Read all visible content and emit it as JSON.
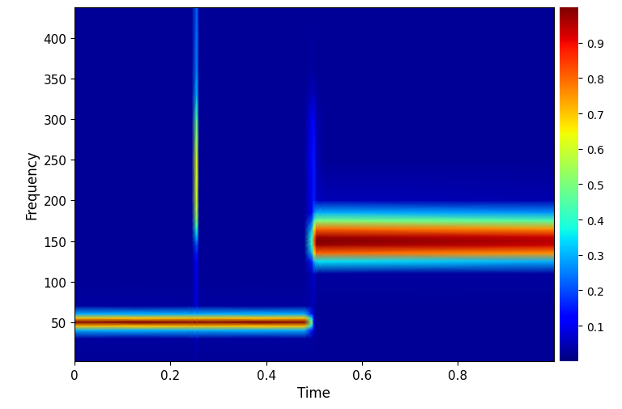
{
  "chart_data": {
    "type": "heatmap",
    "xlabel": "Time",
    "ylabel": "Frequency",
    "x": [
      0,
      0.24,
      0.245,
      0.255,
      0.26,
      0.48,
      0.495,
      0.5,
      0.505,
      0.52,
      1.0
    ],
    "y": [
      2,
      30,
      40,
      45,
      50,
      55,
      60,
      70,
      110,
      125,
      135,
      145,
      150,
      155,
      165,
      175,
      185,
      200,
      250,
      300,
      330,
      360,
      438
    ],
    "cells": [
      [
        0.02,
        0.02,
        0.02,
        0.03,
        0.02,
        0.02,
        0.02,
        0.02,
        0.02,
        0.02,
        0.02
      ],
      [
        0.03,
        0.03,
        0.03,
        0.05,
        0.03,
        0.03,
        0.03,
        0.03,
        0.02,
        0.02,
        0.02
      ],
      [
        0.3,
        0.3,
        0.3,
        0.3,
        0.3,
        0.3,
        0.15,
        0.06,
        0.02,
        0.02,
        0.02
      ],
      [
        0.7,
        0.7,
        0.7,
        0.7,
        0.7,
        0.7,
        0.35,
        0.08,
        0.02,
        0.02,
        0.02
      ],
      [
        1.0,
        1.0,
        1.0,
        1.0,
        1.0,
        1.0,
        0.5,
        0.1,
        0.02,
        0.02,
        0.02
      ],
      [
        0.7,
        0.7,
        0.7,
        0.7,
        0.7,
        0.7,
        0.35,
        0.08,
        0.02,
        0.02,
        0.02
      ],
      [
        0.3,
        0.3,
        0.3,
        0.3,
        0.3,
        0.3,
        0.15,
        0.06,
        0.02,
        0.02,
        0.02
      ],
      [
        0.03,
        0.03,
        0.03,
        0.08,
        0.03,
        0.03,
        0.04,
        0.05,
        0.02,
        0.02,
        0.02
      ],
      [
        0.02,
        0.02,
        0.02,
        0.1,
        0.02,
        0.02,
        0.05,
        0.08,
        0.03,
        0.03,
        0.03
      ],
      [
        0.02,
        0.02,
        0.02,
        0.12,
        0.02,
        0.02,
        0.15,
        0.3,
        0.35,
        0.35,
        0.3
      ],
      [
        0.02,
        0.02,
        0.02,
        0.15,
        0.02,
        0.02,
        0.3,
        0.65,
        0.8,
        0.8,
        0.75
      ],
      [
        0.02,
        0.02,
        0.02,
        0.2,
        0.02,
        0.02,
        0.38,
        0.78,
        0.97,
        0.97,
        0.93
      ],
      [
        0.02,
        0.02,
        0.02,
        0.25,
        0.02,
        0.02,
        0.4,
        0.8,
        1.0,
        1.0,
        0.95
      ],
      [
        0.02,
        0.02,
        0.02,
        0.3,
        0.02,
        0.02,
        0.38,
        0.78,
        0.97,
        0.97,
        0.93
      ],
      [
        0.02,
        0.02,
        0.02,
        0.4,
        0.02,
        0.02,
        0.3,
        0.65,
        0.8,
        0.8,
        0.75
      ],
      [
        0.02,
        0.02,
        0.02,
        0.5,
        0.02,
        0.02,
        0.2,
        0.42,
        0.5,
        0.5,
        0.45
      ],
      [
        0.02,
        0.02,
        0.02,
        0.55,
        0.02,
        0.02,
        0.1,
        0.25,
        0.3,
        0.3,
        0.27
      ],
      [
        0.02,
        0.02,
        0.02,
        0.6,
        0.02,
        0.02,
        0.1,
        0.15,
        0.06,
        0.05,
        0.04
      ],
      [
        0.02,
        0.02,
        0.02,
        0.62,
        0.02,
        0.02,
        0.12,
        0.15,
        0.05,
        0.02,
        0.02
      ],
      [
        0.02,
        0.02,
        0.02,
        0.45,
        0.02,
        0.02,
        0.1,
        0.12,
        0.04,
        0.02,
        0.02
      ],
      [
        0.02,
        0.02,
        0.02,
        0.3,
        0.02,
        0.02,
        0.05,
        0.06,
        0.03,
        0.02,
        0.02
      ],
      [
        0.02,
        0.02,
        0.02,
        0.25,
        0.02,
        0.02,
        0.03,
        0.03,
        0.02,
        0.02,
        0.02
      ],
      [
        0.02,
        0.02,
        0.02,
        0.22,
        0.02,
        0.02,
        0.02,
        0.02,
        0.02,
        0.02,
        0.02
      ]
    ],
    "xlim": [
      0,
      1
    ],
    "ylim": [
      2,
      438
    ],
    "xticks": [
      0,
      0.2,
      0.4,
      0.6,
      0.8
    ],
    "yticks": [
      50,
      100,
      150,
      200,
      250,
      300,
      350,
      400
    ],
    "color": "jet",
    "colorbar_range": [
      0,
      1
    ],
    "colorbar_ticks": [
      0.1,
      0.2,
      0.3,
      0.4,
      0.5,
      0.6,
      0.7,
      0.8,
      0.9
    ]
  }
}
